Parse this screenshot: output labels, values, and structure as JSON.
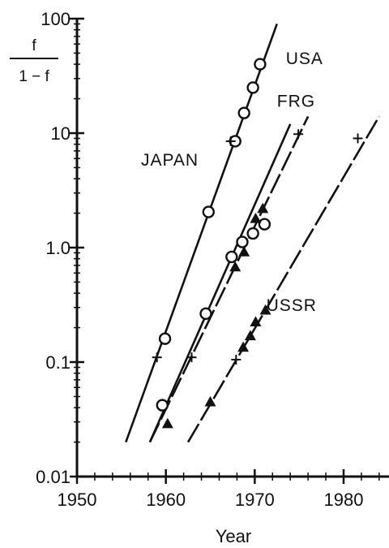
{
  "chart_data": {
    "type": "line",
    "title": "",
    "xlabel": "Year",
    "ylabel_numerator": "f",
    "ylabel_denominator": "1 − f",
    "y_scale": "log",
    "xlim": [
      1950,
      1984
    ],
    "ylim": [
      0.01,
      100
    ],
    "x_ticks": [
      1950,
      1960,
      1970,
      1980
    ],
    "x_tick_labels": [
      "1950",
      "1960",
      "1970",
      "1980"
    ],
    "y_ticks": [
      0.01,
      0.1,
      1,
      10,
      100
    ],
    "y_tick_labels": [
      "0.01",
      "0.1",
      "1.0",
      "10",
      "100"
    ],
    "grid": false,
    "series": [
      {
        "name": "JAPAN",
        "line_style": "solid",
        "fit_line": [
          [
            1955.5,
            0.02
          ],
          [
            1972.5,
            90
          ]
        ],
        "circles": [
          [
            1959.9,
            0.16
          ],
          [
            1964.8,
            2.05
          ],
          [
            1967.8,
            8.5
          ],
          [
            1968.8,
            15
          ],
          [
            1969.8,
            25
          ],
          [
            1970.6,
            40
          ]
        ],
        "triangles": [],
        "plus_marks": [
          [
            1959.0,
            0.11
          ],
          [
            1967.3,
            8.5
          ]
        ]
      },
      {
        "name": "USA",
        "line_style": "solid",
        "fit_line": [
          [
            1958.2,
            0.02
          ],
          [
            1974.0,
            12
          ]
        ],
        "circles": [
          [
            1959.6,
            0.042
          ],
          [
            1964.5,
            0.265
          ],
          [
            1967.4,
            0.83
          ],
          [
            1968.6,
            1.12
          ],
          [
            1969.8,
            1.33
          ],
          [
            1971.1,
            1.6
          ]
        ],
        "triangles": [],
        "plus_marks": [
          [
            1962.9,
            0.11
          ]
        ]
      },
      {
        "name": "FRG",
        "line_style": "dashed",
        "fit_line": [
          [
            1958.2,
            0.02
          ],
          [
            1976.0,
            14
          ]
        ],
        "circles": [],
        "triangles": [
          [
            1960.2,
            0.029
          ],
          [
            1967.8,
            0.68
          ],
          [
            1968.8,
            0.92
          ],
          [
            1970.1,
            1.8
          ],
          [
            1970.9,
            2.2
          ]
        ],
        "plus_marks": [
          [
            1974.9,
            9.8
          ]
        ]
      },
      {
        "name": "USSR",
        "line_style": "dashed",
        "fit_line": [
          [
            1962.5,
            0.02
          ],
          [
            1984,
            14
          ]
        ],
        "circles": [],
        "triangles": [
          [
            1965.0,
            0.045
          ],
          [
            1968.7,
            0.135
          ],
          [
            1969.5,
            0.17
          ],
          [
            1970.1,
            0.225
          ],
          [
            1971.2,
            0.285
          ]
        ],
        "plus_marks": [
          [
            1967.9,
            0.105
          ],
          [
            1981.6,
            9.0
          ]
        ]
      }
    ],
    "annotations": [
      {
        "text": "JAPAN",
        "x": 1957.2,
        "y": 5.2
      },
      {
        "text": "USA",
        "x": 1973.5,
        "y": 40
      },
      {
        "text": "FRG",
        "x": 1972.5,
        "y": 17
      },
      {
        "text": "USSR",
        "x": 1971.3,
        "y": 0.28
      }
    ]
  }
}
